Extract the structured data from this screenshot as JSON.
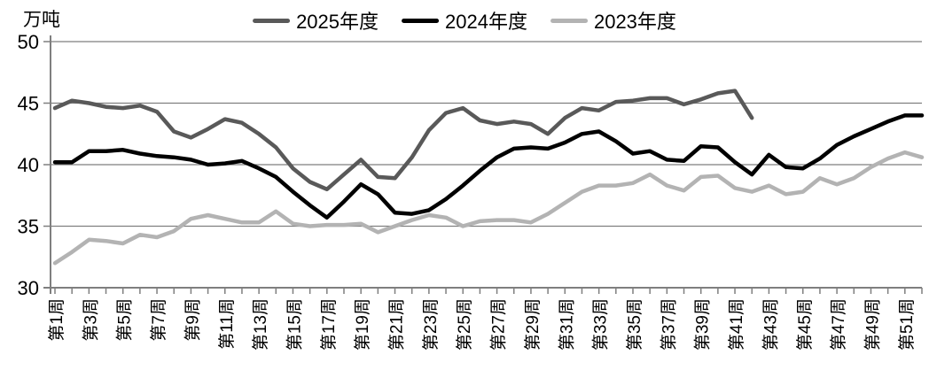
{
  "chart_data": {
    "type": "line",
    "title": "",
    "ylabel": "万吨",
    "xlabel": "",
    "ylim": [
      30,
      50
    ],
    "yticks": [
      30,
      35,
      40,
      45,
      50
    ],
    "grid": true,
    "legend_position": "top-center",
    "xtick_label_every": 2,
    "categories": [
      "第1周",
      "第2周",
      "第3周",
      "第4周",
      "第5周",
      "第6周",
      "第7周",
      "第8周",
      "第9周",
      "第10周",
      "第11周",
      "第12周",
      "第13周",
      "第14周",
      "第15周",
      "第16周",
      "第17周",
      "第18周",
      "第19周",
      "第20周",
      "第21周",
      "第22周",
      "第23周",
      "第24周",
      "第25周",
      "第26周",
      "第27周",
      "第28周",
      "第29周",
      "第30周",
      "第31周",
      "第32周",
      "第33周",
      "第34周",
      "第35周",
      "第36周",
      "第37周",
      "第38周",
      "第39周",
      "第40周",
      "第41周",
      "第42周",
      "第43周",
      "第44周",
      "第45周",
      "第46周",
      "第47周",
      "第48周",
      "第49周",
      "第50周",
      "第51周",
      "第52周"
    ],
    "series": [
      {
        "name": "2025年度",
        "color": "#595959",
        "values": [
          44.6,
          45.2,
          45.0,
          44.7,
          44.6,
          44.8,
          44.3,
          42.7,
          42.2,
          42.9,
          43.7,
          43.4,
          42.5,
          41.4,
          39.7,
          38.6,
          38.0,
          39.2,
          40.4,
          39.0,
          38.9,
          40.6,
          42.8,
          44.2,
          44.6,
          43.6,
          43.3,
          43.5,
          43.3,
          42.5,
          43.8,
          44.6,
          44.4,
          45.1,
          45.2,
          45.4,
          45.4,
          44.9,
          45.3,
          45.8,
          46.0,
          43.8
        ]
      },
      {
        "name": "2024年度",
        "color": "#000000",
        "values": [
          40.2,
          40.2,
          41.1,
          41.1,
          41.2,
          40.9,
          40.7,
          40.6,
          40.4,
          40.0,
          40.1,
          40.3,
          39.7,
          39.0,
          37.8,
          36.7,
          35.7,
          37.0,
          38.4,
          37.6,
          36.1,
          36.0,
          36.3,
          37.2,
          38.3,
          39.5,
          40.6,
          41.3,
          41.4,
          41.3,
          41.8,
          42.5,
          42.7,
          41.9,
          40.9,
          41.1,
          40.4,
          40.3,
          41.5,
          41.4,
          40.2,
          39.2,
          40.8,
          39.8,
          39.7,
          40.5,
          41.6,
          42.3,
          42.9,
          43.5,
          44.0,
          44.0
        ]
      },
      {
        "name": "2023年度",
        "color": "#b3b3b3",
        "values": [
          32.0,
          32.9,
          33.9,
          33.8,
          33.6,
          34.3,
          34.1,
          34.6,
          35.6,
          35.9,
          35.6,
          35.3,
          35.3,
          36.2,
          35.2,
          35.0,
          35.1,
          35.1,
          35.2,
          34.5,
          35.0,
          35.5,
          35.9,
          35.7,
          35.0,
          35.4,
          35.5,
          35.5,
          35.3,
          36.0,
          36.9,
          37.8,
          38.3,
          38.3,
          38.5,
          39.2,
          38.3,
          37.9,
          39.0,
          39.1,
          38.1,
          37.8,
          38.3,
          37.6,
          37.8,
          38.9,
          38.4,
          38.9,
          39.8,
          40.5,
          41.0,
          40.6
        ]
      }
    ]
  }
}
